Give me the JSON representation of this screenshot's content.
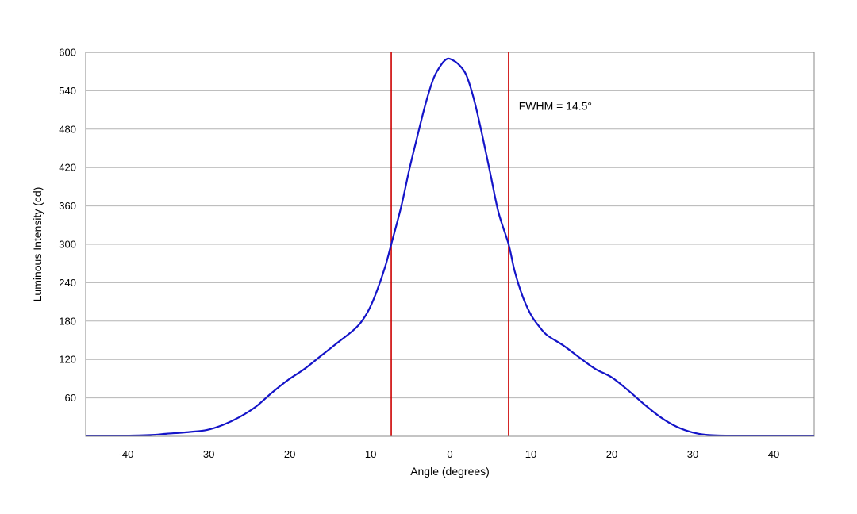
{
  "chart_data": {
    "type": "line",
    "title": "",
    "xlabel": "Angle (degrees)",
    "ylabel": "Luminous Intensity (cd)",
    "xlim": [
      -45,
      45
    ],
    "ylim": [
      0,
      600
    ],
    "grid": {
      "x": false,
      "y": true
    },
    "x_ticks": [
      -40,
      -30,
      -20,
      -10,
      0,
      10,
      20,
      30,
      40
    ],
    "y_ticks": [
      60,
      120,
      180,
      240,
      300,
      360,
      420,
      480,
      540,
      600
    ],
    "series": [
      {
        "color": "#1414c8",
        "points": [
          [
            -45,
            1
          ],
          [
            -40,
            1
          ],
          [
            -37,
            2
          ],
          [
            -35,
            4
          ],
          [
            -32,
            7
          ],
          [
            -30,
            10
          ],
          [
            -28,
            18
          ],
          [
            -26,
            30
          ],
          [
            -24,
            46
          ],
          [
            -22,
            68
          ],
          [
            -20,
            88
          ],
          [
            -18,
            105
          ],
          [
            -16,
            125
          ],
          [
            -14,
            145
          ],
          [
            -12,
            165
          ],
          [
            -11,
            178
          ],
          [
            -10,
            198
          ],
          [
            -9,
            228
          ],
          [
            -8,
            265
          ],
          [
            -7.25,
            300
          ],
          [
            -6,
            360
          ],
          [
            -5,
            418
          ],
          [
            -4,
            470
          ],
          [
            -3,
            520
          ],
          [
            -2,
            560
          ],
          [
            -1,
            582
          ],
          [
            -0.3,
            590
          ],
          [
            0.3,
            588
          ],
          [
            1,
            582
          ],
          [
            2,
            565
          ],
          [
            3,
            525
          ],
          [
            4,
            470
          ],
          [
            5,
            410
          ],
          [
            6,
            350
          ],
          [
            7.25,
            300
          ],
          [
            8,
            258
          ],
          [
            9,
            218
          ],
          [
            10,
            190
          ],
          [
            11,
            172
          ],
          [
            12,
            158
          ],
          [
            14,
            142
          ],
          [
            16,
            123
          ],
          [
            18,
            105
          ],
          [
            20,
            92
          ],
          [
            22,
            72
          ],
          [
            24,
            50
          ],
          [
            26,
            30
          ],
          [
            28,
            15
          ],
          [
            30,
            6
          ],
          [
            32,
            2
          ],
          [
            35,
            1
          ],
          [
            40,
            1
          ],
          [
            45,
            1
          ]
        ]
      }
    ],
    "vertical_lines": [
      {
        "x": -7.25,
        "color": "#cc0000"
      },
      {
        "x": 7.25,
        "color": "#cc0000"
      }
    ],
    "annotations": [
      {
        "text": "FWHM = 14.5°",
        "x": 8.5,
        "y": 510
      }
    ]
  }
}
